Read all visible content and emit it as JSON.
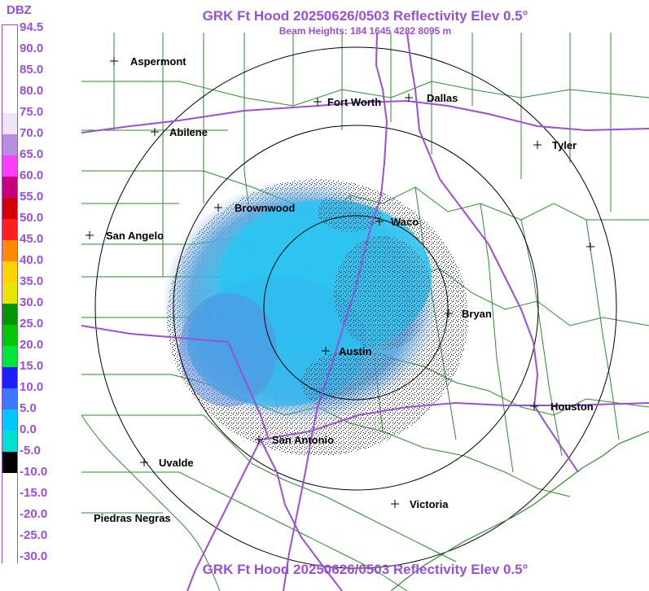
{
  "title": "GRK Ft Hood 20250626/0503 Reflectivity Elev 0.5°",
  "subtitle": "Beam Heights: 184 1645 4282 8095 m",
  "footer": "GRK Ft Hood 20250626/0503 Reflectivity Elev 0.5°",
  "legend": {
    "unit": "DBZ",
    "entries": [
      {
        "label": "94.5",
        "color": "#ffffff"
      },
      {
        "label": "90.0",
        "color": "#ffffff"
      },
      {
        "label": "85.0",
        "color": "#ffffff"
      },
      {
        "label": "80.0",
        "color": "#ffffff"
      },
      {
        "label": "75.0",
        "color": "#f0e4f8"
      },
      {
        "label": "70.0",
        "color": "#b58ee0"
      },
      {
        "label": "65.0",
        "color": "#ff3cff"
      },
      {
        "label": "60.0",
        "color": "#c8007a"
      },
      {
        "label": "55.0",
        "color": "#d20000"
      },
      {
        "label": "50.0",
        "color": "#ff1e1e"
      },
      {
        "label": "45.0",
        "color": "#ff8a00"
      },
      {
        "label": "40.0",
        "color": "#ffd200"
      },
      {
        "label": "35.0",
        "color": "#e6e600"
      },
      {
        "label": "30.0",
        "color": "#009600"
      },
      {
        "label": "25.0",
        "color": "#00c800"
      },
      {
        "label": "20.0",
        "color": "#00e43c"
      },
      {
        "label": "15.0",
        "color": "#1e1eff"
      },
      {
        "label": "10.0",
        "color": "#3c78ff"
      },
      {
        "label": "5.0",
        "color": "#00c8ff"
      },
      {
        "label": "0.0",
        "color": "#00e0d0"
      },
      {
        "label": "-5.0",
        "color": "#000000"
      },
      {
        "label": "-10.0",
        "color": "#ffffff"
      },
      {
        "label": "-15.0",
        "color": "#ffffff"
      },
      {
        "label": "-20.0",
        "color": "#ffffff"
      },
      {
        "label": "-25.0",
        "color": "#ffffff"
      },
      {
        "label": "-30.0",
        "color": "#ffffff"
      }
    ]
  },
  "cities": [
    {
      "name": "Aspermont"
    },
    {
      "name": "Fort Worth"
    },
    {
      "name": "Dallas"
    },
    {
      "name": "Abilene"
    },
    {
      "name": "Tyler"
    },
    {
      "name": "Brownwood"
    },
    {
      "name": "Waco"
    },
    {
      "name": "San Angelo"
    },
    {
      "name": "Bryan"
    },
    {
      "name": "Austin"
    },
    {
      "name": "Houston"
    },
    {
      "name": "San Antonio"
    },
    {
      "name": "Uvalde"
    },
    {
      "name": "Victoria"
    },
    {
      "name": "Piedras Negras"
    },
    {
      "name": ""
    }
  ],
  "colors": {
    "title": "#9b4fd6",
    "county_lines": "#2e8b2e",
    "highways": "#9b4fd6",
    "range_rings": "#000000"
  }
}
